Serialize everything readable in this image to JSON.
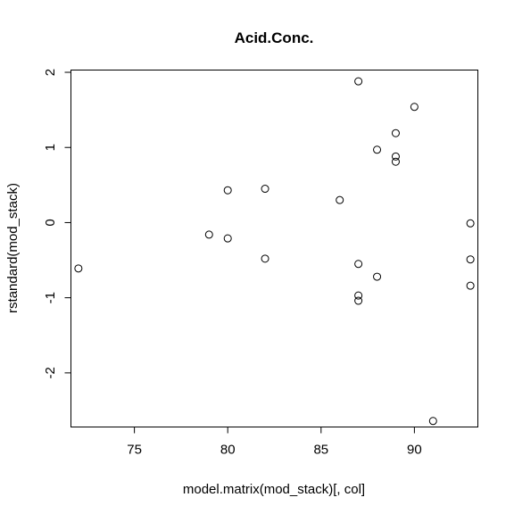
{
  "chart_data": {
    "type": "scatter",
    "title": "Acid.Conc.",
    "xlabel": "model.matrix(mod_stack)[, col]",
    "ylabel": "rstandard(mod_stack)",
    "xlim": [
      71.6,
      93.4
    ],
    "ylim": [
      -2.72,
      2.03
    ],
    "xticks": [
      75,
      80,
      85,
      90
    ],
    "yticks": [
      -2,
      -1,
      0,
      1,
      2
    ],
    "grid": false,
    "points": [
      {
        "x": 72,
        "y": -0.61
      },
      {
        "x": 79,
        "y": -0.16
      },
      {
        "x": 80,
        "y": 0.43
      },
      {
        "x": 80,
        "y": -0.21
      },
      {
        "x": 82,
        "y": 0.45
      },
      {
        "x": 82,
        "y": -0.48
      },
      {
        "x": 86,
        "y": 0.3
      },
      {
        "x": 87,
        "y": 1.88
      },
      {
        "x": 87,
        "y": -0.55
      },
      {
        "x": 87,
        "y": -0.97
      },
      {
        "x": 87,
        "y": -1.04
      },
      {
        "x": 88,
        "y": 0.97
      },
      {
        "x": 88,
        "y": -0.72
      },
      {
        "x": 89,
        "y": 1.19
      },
      {
        "x": 89,
        "y": 0.88
      },
      {
        "x": 89,
        "y": 0.81
      },
      {
        "x": 90,
        "y": 1.54
      },
      {
        "x": 91,
        "y": -2.64
      },
      {
        "x": 93,
        "y": -0.01
      },
      {
        "x": 93,
        "y": -0.49
      },
      {
        "x": 93,
        "y": -0.84
      }
    ]
  }
}
